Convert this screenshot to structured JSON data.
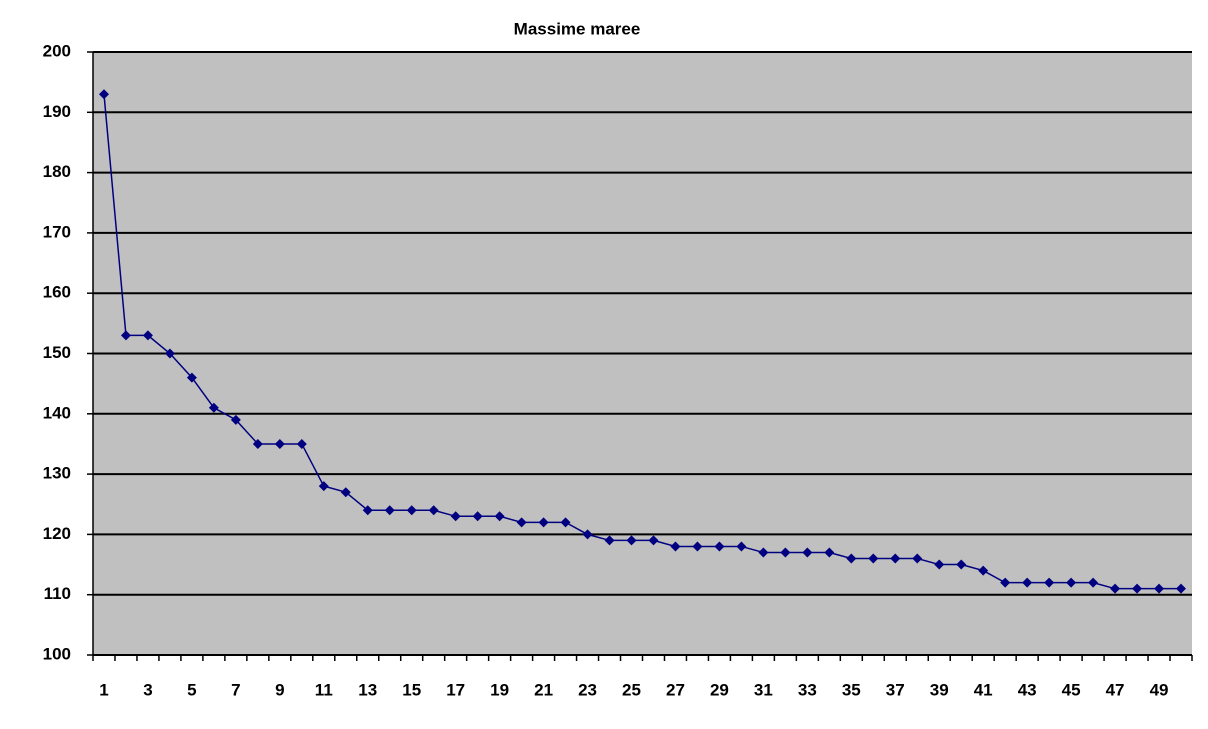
{
  "chart_data": {
    "type": "line",
    "title": "Massime maree",
    "categories": [
      1,
      null,
      3,
      null,
      5,
      null,
      7,
      null,
      9,
      null,
      11,
      null,
      13,
      null,
      15,
      null,
      17,
      null,
      19,
      null,
      21,
      null,
      23,
      null,
      25,
      null,
      27,
      null,
      29,
      null,
      31,
      null,
      33,
      null,
      35,
      null,
      37,
      null,
      39,
      null,
      41,
      null,
      43,
      null,
      45,
      null,
      47,
      null,
      49,
      null
    ],
    "series": [
      {
        "color": "#000080",
        "values": [
          193,
          153,
          153,
          150,
          146,
          141,
          139,
          135,
          135,
          135,
          128,
          127,
          124,
          124,
          124,
          124,
          123,
          123,
          123,
          122,
          122,
          122,
          120,
          119,
          119,
          119,
          118,
          118,
          118,
          118,
          117,
          117,
          117,
          117,
          116,
          116,
          116,
          116,
          115,
          115,
          114,
          112,
          112,
          112,
          112,
          112,
          111,
          111,
          111,
          111
        ]
      }
    ],
    "ylim": [
      100,
      200
    ],
    "yticks": [
      100,
      110,
      120,
      130,
      140,
      150,
      160,
      170,
      180,
      190,
      200
    ],
    "grid": true,
    "plot_background": "#c0c0c0"
  }
}
